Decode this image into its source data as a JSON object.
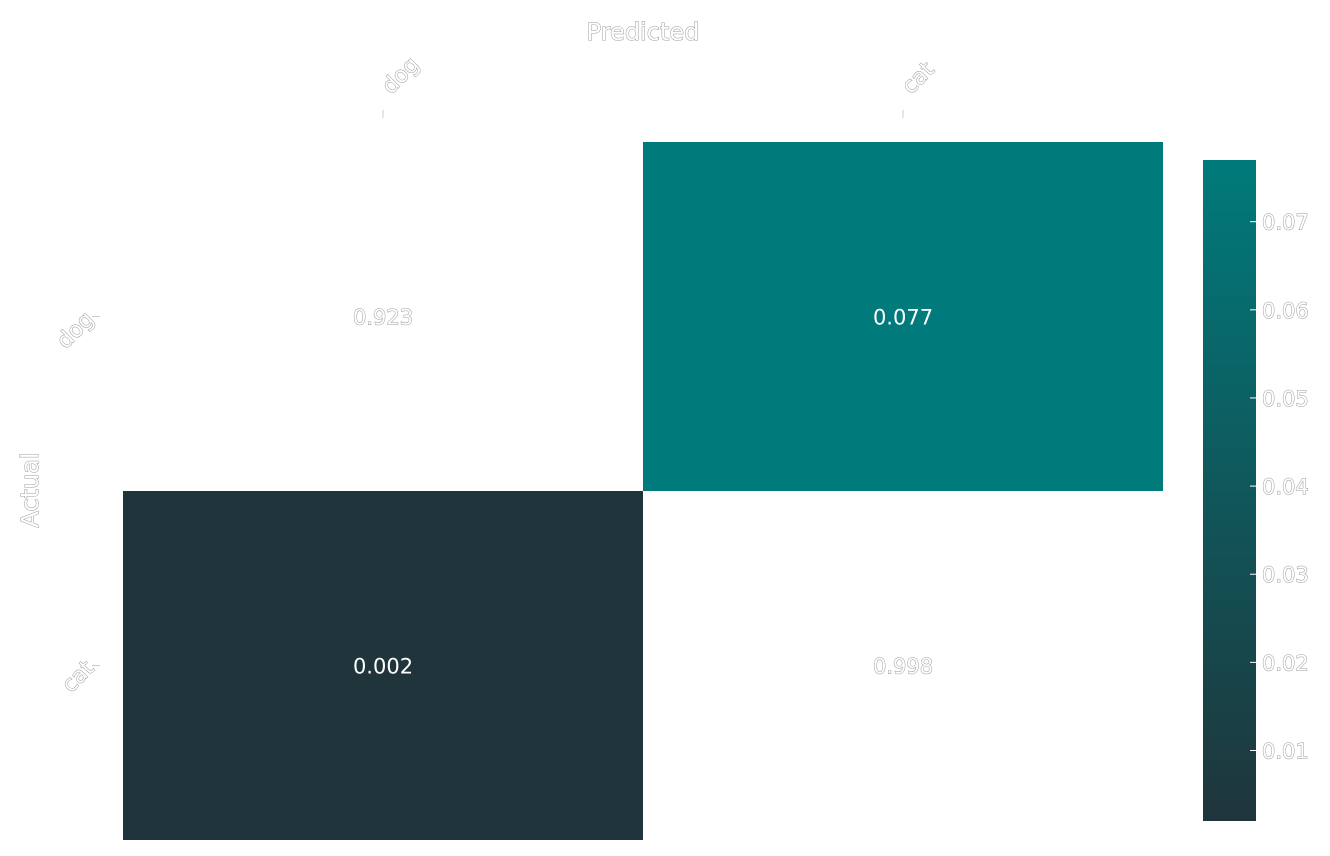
{
  "chart_data": {
    "type": "heatmap",
    "title": "",
    "xlabel": "Predicted",
    "ylabel": "Actual",
    "x_categories": [
      "dog",
      "cat"
    ],
    "y_categories": [
      "dog",
      "cat"
    ],
    "values": [
      [
        0.923,
        0.077
      ],
      [
        0.002,
        0.998
      ]
    ],
    "cell_labels": [
      [
        "0.923",
        "0.077"
      ],
      [
        "0.002",
        "0.998"
      ]
    ],
    "colorbar": {
      "min": 0.002,
      "max": 0.077,
      "ticks": [
        0.01,
        0.02,
        0.03,
        0.04,
        0.05,
        0.06,
        0.07
      ],
      "tick_labels": [
        "0.01",
        "0.02",
        "0.03",
        "0.04",
        "0.05",
        "0.06",
        "0.07"
      ],
      "color_low": "#1f353b",
      "color_high": "#007a7b"
    },
    "colors": {
      "over_range": "#ffffff",
      "dark_text": "#ffffff",
      "light_text_fill": "#ffffff",
      "light_text_stroke": "#9a9a9a"
    }
  }
}
